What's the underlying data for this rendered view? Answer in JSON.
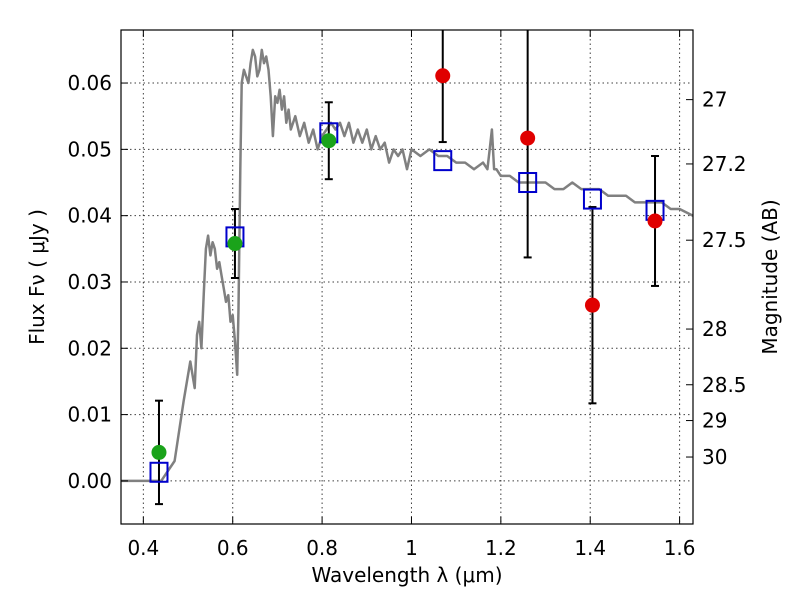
{
  "chart_data": {
    "type": "scatter",
    "xlabel": "Wavelength  λ (μm)",
    "ylabel": "Flux  Fν  ( μJy )",
    "ylabel_right": "Magnitude (AB)",
    "xlim": [
      0.35,
      1.63
    ],
    "ylim": [
      -0.0065,
      0.068
    ],
    "grid": true,
    "x_ticks": [
      0.4,
      0.6,
      0.8,
      1.0,
      1.2,
      1.4,
      1.6
    ],
    "x_tick_labels": [
      "0.4",
      "0.6",
      "0.8",
      "1",
      "1.2",
      "1.4",
      "1.6"
    ],
    "y_ticks": [
      0.0,
      0.01,
      0.02,
      0.03,
      0.04,
      0.05,
      0.06
    ],
    "y_tick_labels": [
      "0.00",
      "0.01",
      "0.02",
      "0.03",
      "0.04",
      "0.05",
      "0.06"
    ],
    "right_ticks": [
      {
        "label": "27",
        "flux": 0.0575
      },
      {
        "label": "27.2",
        "flux": 0.0478
      },
      {
        "label": "27.5",
        "flux": 0.0363
      },
      {
        "label": "28",
        "flux": 0.0229
      },
      {
        "label": "28.5",
        "flux": 0.0145
      },
      {
        "label": "29",
        "flux": 0.0091
      },
      {
        "label": "30",
        "flux": 0.0036
      }
    ],
    "colors": {
      "model": "#808080",
      "green": "#1aa31a",
      "red": "#e00000",
      "box": "#0000cc",
      "errorbar": "#000000"
    },
    "model_spectrum": {
      "x": [
        0.35,
        0.44,
        0.47,
        0.49,
        0.505,
        0.515,
        0.52,
        0.525,
        0.53,
        0.535,
        0.54,
        0.545,
        0.55,
        0.555,
        0.56,
        0.565,
        0.57,
        0.575,
        0.58,
        0.585,
        0.59,
        0.595,
        0.6,
        0.605,
        0.61,
        0.613,
        0.617,
        0.62,
        0.625,
        0.63,
        0.635,
        0.64,
        0.645,
        0.65,
        0.655,
        0.66,
        0.665,
        0.67,
        0.675,
        0.68,
        0.685,
        0.69,
        0.695,
        0.7,
        0.705,
        0.71,
        0.715,
        0.72,
        0.725,
        0.73,
        0.74,
        0.75,
        0.76,
        0.77,
        0.78,
        0.79,
        0.8,
        0.81,
        0.82,
        0.83,
        0.84,
        0.85,
        0.86,
        0.87,
        0.88,
        0.89,
        0.9,
        0.91,
        0.92,
        0.93,
        0.94,
        0.95,
        0.96,
        0.97,
        0.98,
        0.99,
        1.0,
        1.02,
        1.04,
        1.06,
        1.08,
        1.1,
        1.12,
        1.14,
        1.16,
        1.17,
        1.175,
        1.18,
        1.185,
        1.19,
        1.2,
        1.22,
        1.24,
        1.26,
        1.28,
        1.3,
        1.32,
        1.34,
        1.36,
        1.38,
        1.4,
        1.42,
        1.44,
        1.46,
        1.48,
        1.5,
        1.52,
        1.54,
        1.56,
        1.58,
        1.6,
        1.63
      ],
      "y": [
        0.0,
        0.0,
        0.003,
        0.012,
        0.018,
        0.014,
        0.022,
        0.024,
        0.02,
        0.028,
        0.035,
        0.037,
        0.034,
        0.036,
        0.035,
        0.032,
        0.033,
        0.031,
        0.029,
        0.027,
        0.028,
        0.024,
        0.025,
        0.021,
        0.016,
        0.026,
        0.047,
        0.06,
        0.062,
        0.061,
        0.06,
        0.063,
        0.065,
        0.064,
        0.061,
        0.062,
        0.065,
        0.063,
        0.064,
        0.062,
        0.058,
        0.052,
        0.058,
        0.057,
        0.059,
        0.056,
        0.058,
        0.054,
        0.056,
        0.053,
        0.055,
        0.052,
        0.054,
        0.051,
        0.053,
        0.05,
        0.052,
        0.053,
        0.054,
        0.053,
        0.054,
        0.052,
        0.054,
        0.051,
        0.053,
        0.051,
        0.053,
        0.05,
        0.052,
        0.05,
        0.051,
        0.048,
        0.05,
        0.049,
        0.05,
        0.047,
        0.05,
        0.049,
        0.05,
        0.049,
        0.049,
        0.048,
        0.048,
        0.047,
        0.048,
        0.047,
        0.05,
        0.053,
        0.047,
        0.047,
        0.046,
        0.046,
        0.045,
        0.045,
        0.045,
        0.045,
        0.044,
        0.044,
        0.045,
        0.044,
        0.044,
        0.044,
        0.043,
        0.043,
        0.043,
        0.042,
        0.042,
        0.042,
        0.042,
        0.041,
        0.041,
        0.04
      ]
    },
    "model_boxes": {
      "x": [
        0.435,
        0.605,
        0.815,
        1.07,
        1.26,
        1.405,
        1.545
      ],
      "y": [
        0.0013,
        0.0368,
        0.0525,
        0.0483,
        0.045,
        0.0425,
        0.0408
      ]
    },
    "green_points": {
      "x": [
        0.435,
        0.605,
        0.815
      ],
      "y": [
        0.0043,
        0.0358,
        0.0513
      ],
      "err": [
        0.0078,
        0.0052,
        0.0058
      ]
    },
    "red_points": {
      "x": [
        1.07,
        1.26,
        1.405,
        1.545
      ],
      "y": [
        0.0611,
        0.0517,
        0.0265,
        0.0392
      ],
      "err": [
        0.01,
        0.018,
        0.0148,
        0.0098
      ]
    }
  }
}
